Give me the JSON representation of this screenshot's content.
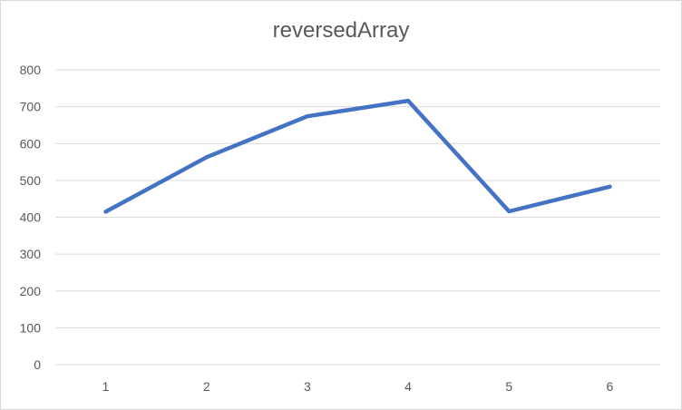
{
  "chart_data": {
    "type": "line",
    "title": "reversedArray",
    "xlabel": "",
    "ylabel": "",
    "categories": [
      "1",
      "2",
      "3",
      "4",
      "5",
      "6"
    ],
    "series": [
      {
        "values": [
          415,
          563,
          674,
          716,
          416,
          483
        ]
      }
    ],
    "ylim": [
      0,
      800
    ],
    "yticks": [
      0,
      100,
      200,
      300,
      400,
      500,
      600,
      700,
      800
    ],
    "grid": true,
    "legend": "none",
    "colors": {
      "line": "#4472c4",
      "grid": "#d9d9d9",
      "text": "#595959"
    }
  }
}
